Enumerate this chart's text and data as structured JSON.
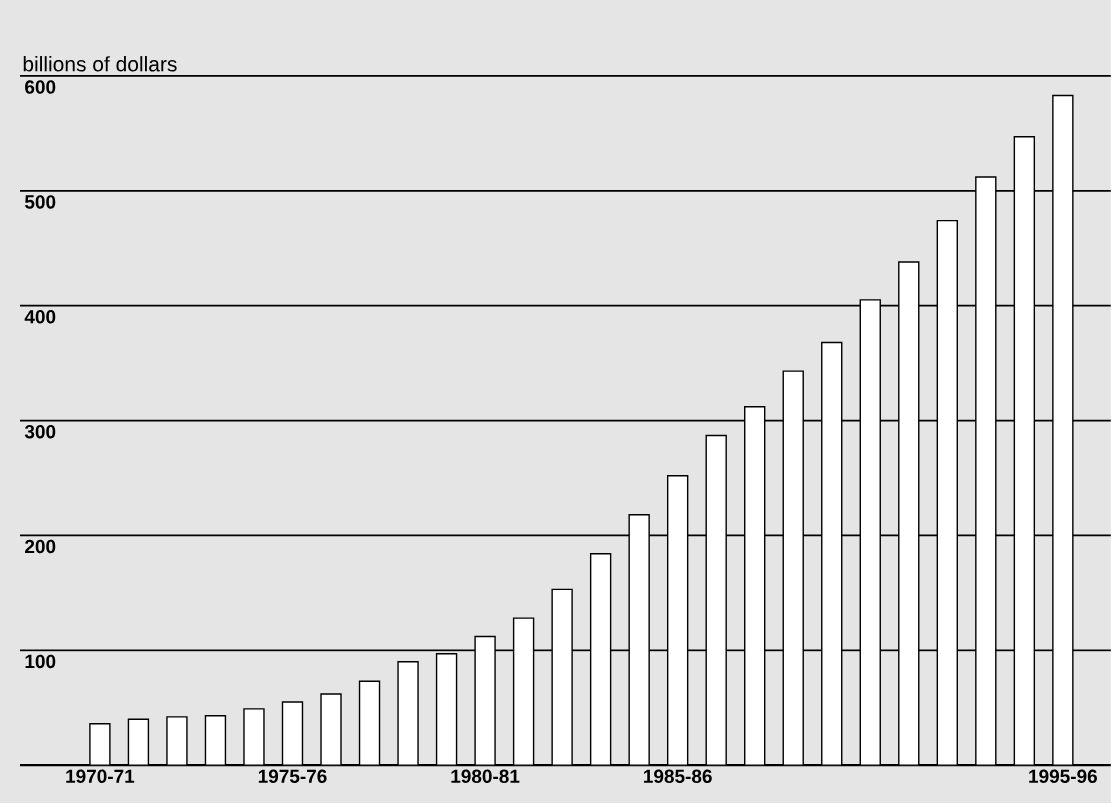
{
  "chart_data": {
    "type": "bar",
    "ylabel": "billions of dollars",
    "categories": [
      "1970-71",
      null,
      null,
      null,
      null,
      "1975-76",
      null,
      null,
      null,
      null,
      "1980-81",
      null,
      null,
      null,
      null,
      "1985-86",
      null,
      null,
      null,
      null,
      null,
      null,
      null,
      null,
      null,
      "1995-96"
    ],
    "values": [
      36,
      40,
      42,
      43,
      49,
      55,
      62,
      73,
      90,
      97,
      112,
      128,
      153,
      184,
      218,
      252,
      287,
      312,
      343,
      368,
      405,
      438,
      474,
      512,
      547,
      583
    ],
    "color": "#ffffff",
    "ylim": [
      0,
      600
    ],
    "yticks": [
      100,
      200,
      300,
      400,
      500,
      600
    ],
    "grid": "y"
  }
}
